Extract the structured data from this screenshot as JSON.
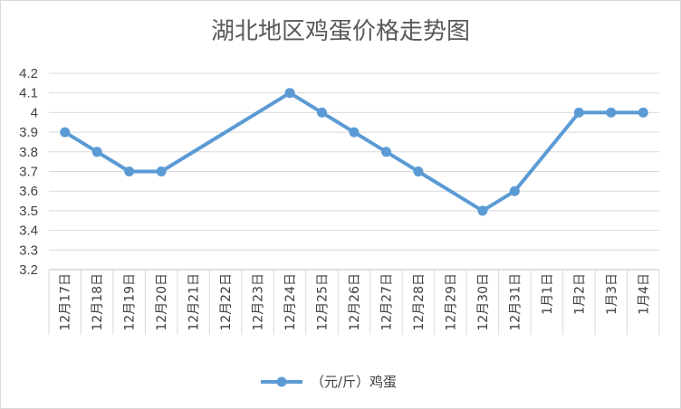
{
  "chart_data": {
    "type": "line",
    "title": "湖北地区鸡蛋价格走势图",
    "categories": [
      "12月17日",
      "12月18日",
      "12月19日",
      "12月20日",
      "12月21日",
      "12月22日",
      "12月23日",
      "12月24日",
      "12月25日",
      "12月26日",
      "12月27日",
      "12月28日",
      "12月29日",
      "12月30日",
      "12月31日",
      "1月1日",
      "1月2日",
      "1月3日",
      "1月4日"
    ],
    "yticks": [
      "3.2",
      "3.3",
      "3.4",
      "3.5",
      "3.6",
      "3.7",
      "3.8",
      "3.9",
      "4",
      "4.1",
      "4.2"
    ],
    "ylim": [
      3.2,
      4.2
    ],
    "series": [
      {
        "name": "（元/斤）鸡蛋",
        "color": "#5b9bd5",
        "values": [
          3.9,
          3.8,
          3.7,
          3.7,
          null,
          null,
          null,
          4.1,
          4.0,
          3.9,
          3.8,
          3.7,
          null,
          3.5,
          3.6,
          null,
          4.0,
          4.0,
          4.0
        ]
      }
    ],
    "grid": true,
    "legend": "bottom"
  }
}
